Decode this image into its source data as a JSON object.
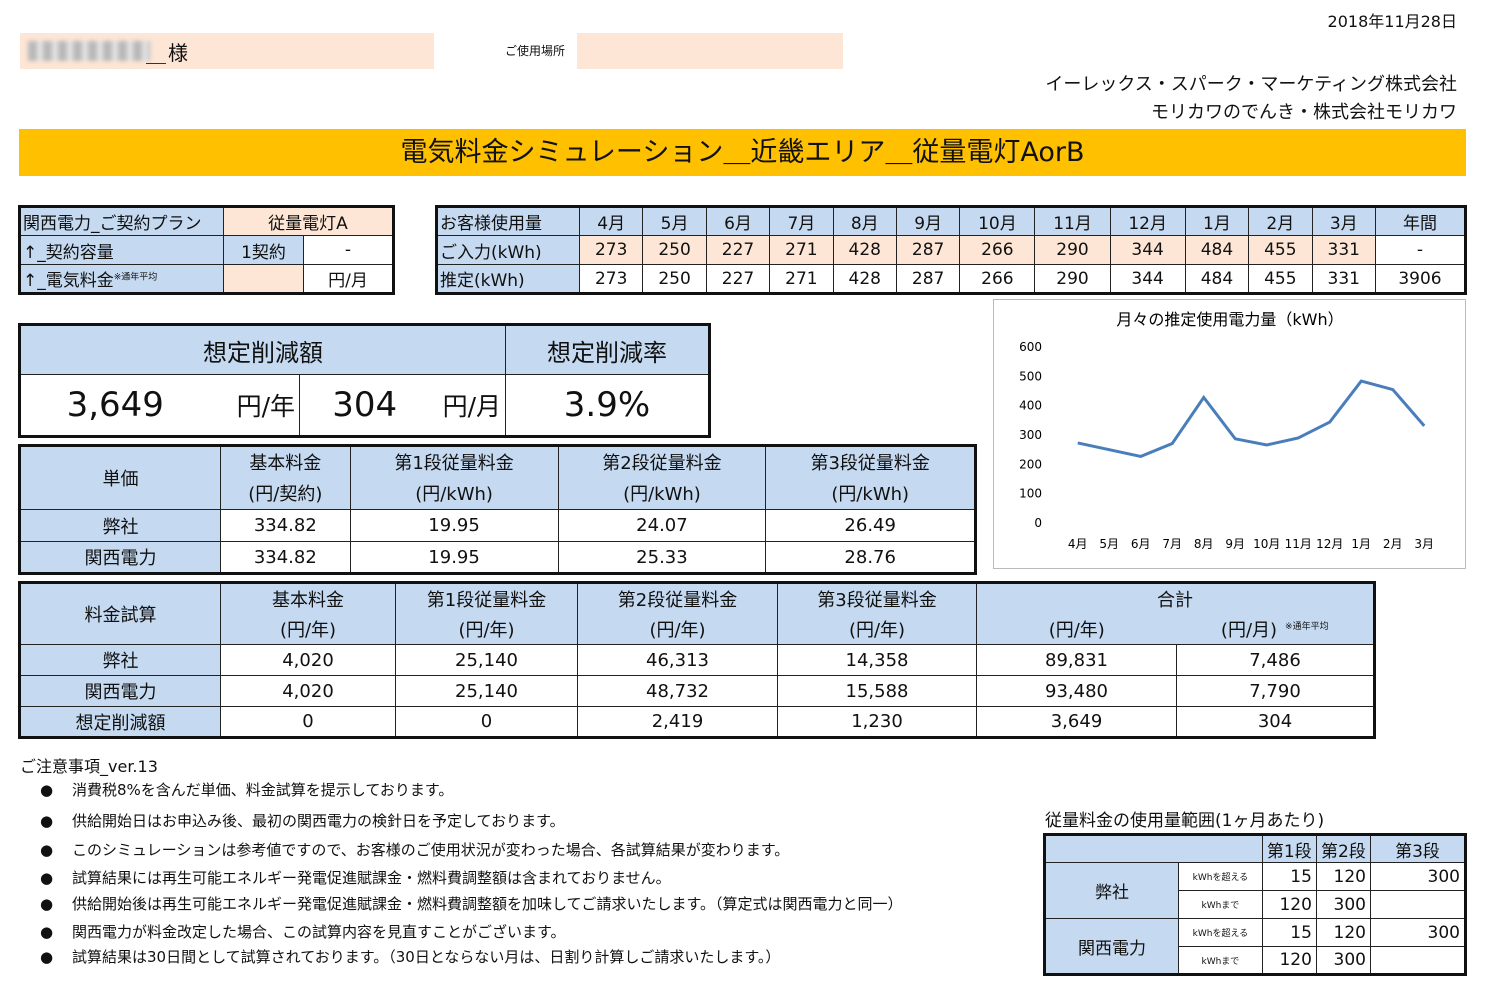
{
  "header": {
    "date": "2018年11月28日",
    "honorific": "様",
    "place_label": "ご使用場所",
    "company_line1": "イーレックス・スパーク・マーケティング株式会社",
    "company_line2": "モリカワのでんき・株式会社モリカワ",
    "title": "電気料金シミュレーション＿近畿エリア＿従量電灯AorB"
  },
  "contract": {
    "plan_label": "関西電力_ご契約プラン",
    "plan_value": "従量電灯A",
    "capacity_label": "↑_契約容量",
    "capacity_value": "1契約",
    "capacity_extra": "-",
    "fee_label": "↑_電気料金",
    "fee_note": "※通年平均",
    "fee_unit": "円/月"
  },
  "usage": {
    "header_label": "お客様使用量",
    "months": [
      "4月",
      "5月",
      "6月",
      "7月",
      "8月",
      "9月",
      "10月",
      "11月",
      "12月",
      "1月",
      "2月",
      "3月"
    ],
    "annual_label": "年間",
    "input_label": "ご入力(kWh)",
    "input_values": [
      "273",
      "250",
      "227",
      "271",
      "428",
      "287",
      "266",
      "290",
      "344",
      "484",
      "455",
      "331"
    ],
    "input_annual": "-",
    "est_label": "推定(kWh)",
    "est_values": [
      "273",
      "250",
      "227",
      "271",
      "428",
      "287",
      "266",
      "290",
      "344",
      "484",
      "455",
      "331"
    ],
    "est_annual": "3906"
  },
  "savings": {
    "amount_label": "想定削減額",
    "rate_label": "想定削減率",
    "yearly": "3,649",
    "yearly_unit": "円/年",
    "monthly": "304",
    "monthly_unit": "円/月",
    "rate": "3.9%"
  },
  "unit_price": {
    "label": "単価",
    "cols": [
      {
        "name": "基本料金",
        "unit": "(円/契約)"
      },
      {
        "name": "第1段従量料金",
        "unit": "(円/kWh)"
      },
      {
        "name": "第2段従量料金",
        "unit": "(円/kWh)"
      },
      {
        "name": "第3段従量料金",
        "unit": "(円/kWh)"
      }
    ],
    "rows": [
      {
        "name": "弊社",
        "values": [
          "334.82",
          "19.95",
          "24.07",
          "26.49"
        ]
      },
      {
        "name": "関西電力",
        "values": [
          "334.82",
          "19.95",
          "25.33",
          "28.76"
        ]
      }
    ]
  },
  "trial": {
    "label": "料金試算",
    "cols": [
      {
        "name": "基本料金",
        "unit": "(円/年)"
      },
      {
        "name": "第1段従量料金",
        "unit": "(円/年)"
      },
      {
        "name": "第2段従量料金",
        "unit": "(円/年)"
      },
      {
        "name": "第3段従量料金",
        "unit": "(円/年)"
      }
    ],
    "total_label": "合計",
    "total_unit_year": "(円/年)",
    "total_unit_month": "(円/月)",
    "total_note": "※通年平均",
    "rows": [
      {
        "name": "弊社",
        "values": [
          "4,020",
          "25,140",
          "46,313",
          "14,358",
          "89,831",
          "7,486"
        ]
      },
      {
        "name": "関西電力",
        "values": [
          "4,020",
          "25,140",
          "48,732",
          "15,588",
          "93,480",
          "7,790"
        ]
      },
      {
        "name": "想定削減額",
        "values": [
          "0",
          "0",
          "2,419",
          "1,230",
          "3,649",
          "304"
        ]
      }
    ]
  },
  "chart_data": {
    "type": "line",
    "title": "月々の推定使用電力量（kWh）",
    "categories": [
      "4月",
      "5月",
      "6月",
      "7月",
      "8月",
      "9月",
      "10月",
      "11月",
      "12月",
      "1月",
      "2月",
      "3月"
    ],
    "values": [
      273,
      250,
      227,
      271,
      428,
      287,
      266,
      290,
      344,
      484,
      455,
      331
    ],
    "ylim": [
      0,
      600
    ],
    "yticks": [
      0,
      100,
      200,
      300,
      400,
      500,
      600
    ],
    "grid": false,
    "legend": "none",
    "line_color": "#4a7ebb"
  },
  "notes": {
    "title": "ご注意事項_ver.13",
    "bullet": "●",
    "items": [
      "消費税8%を含んだ単価、料金試算を提示しております。",
      "供給開始日はお申込み後、最初の関西電力の検針日を予定しております。",
      "このシミュレーションは参考値ですので、お客様のご使用状況が変わった場合、各試算結果が変わります。",
      "試算結果には再生可能エネルギー発電促進賦課金・燃料費調整額は含まれておりません。",
      "供給開始後は再生可能エネルギー発電促進賦課金・燃料費調整額を加味してご請求いたします。（算定式は関西電力と同一）",
      "関西電力が料金改定した場合、この試算内容を見直すことがございます。",
      "試算結果は30日間として試算されております。（30日とならない月は、日割り計算しご請求いたします。）"
    ]
  },
  "range": {
    "title": "従量料金の使用量範囲(1ヶ月あたり)",
    "stages": [
      "第1段",
      "第2段",
      "第3段"
    ],
    "over_label": "kWhを超える",
    "upto_label": "kWhまで",
    "rows": [
      {
        "name": "弊社",
        "over": [
          "15",
          "120",
          "300"
        ],
        "upto": [
          "120",
          "300",
          ""
        ]
      },
      {
        "name": "関西電力",
        "over": [
          "15",
          "120",
          "300"
        ],
        "upto": [
          "120",
          "300",
          ""
        ]
      }
    ]
  },
  "colors": {
    "title_bar": "#ffc000",
    "header_blue": "#c5d9f1",
    "input_peach": "#fde6d6"
  }
}
